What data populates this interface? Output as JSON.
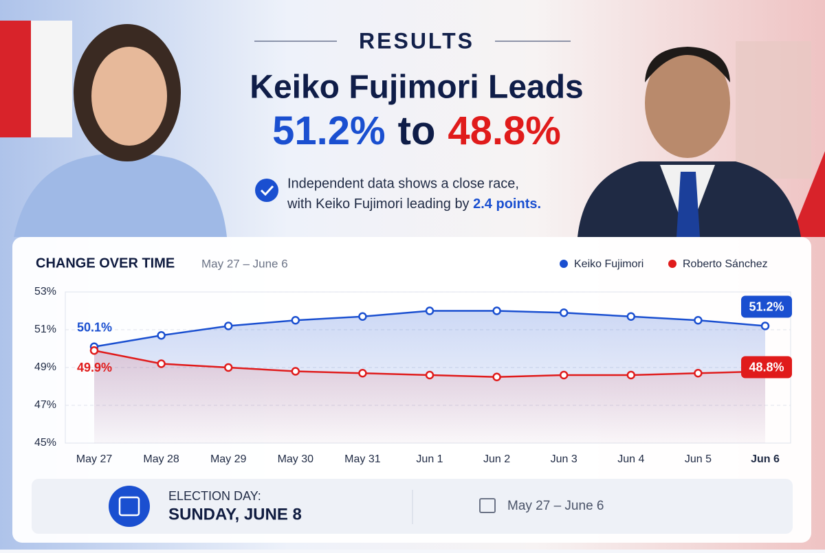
{
  "header": {
    "kicker": "RESULTS",
    "headline": "Keiko Fujimori Leads",
    "share_a": "51.2%",
    "joiner": "to",
    "share_b": "48.8%",
    "note_line1": "Independent data shows a close race,",
    "note_line2": "with Keiko Fujimori leading by ",
    "note_emphasis": "2.4 points."
  },
  "chart_data": {
    "type": "line",
    "title": "CHANGE OVER TIME",
    "subtitle": "May 27 – June 6",
    "categories": [
      "May 27",
      "May 28",
      "May 29",
      "May 30",
      "May 31",
      "Jun 1",
      "Jun 2",
      "Jun 3",
      "Jun 4",
      "Jun 5",
      "Jun 6"
    ],
    "series": [
      {
        "name": "Keiko Fujimori",
        "color": "#1a4fd0",
        "values": [
          50.1,
          50.7,
          51.2,
          51.5,
          51.7,
          52.0,
          52.0,
          51.9,
          51.7,
          51.5,
          51.2
        ],
        "value_labels": [
          "50.1%",
          null,
          null,
          null,
          null,
          null,
          null,
          null,
          null,
          null,
          "51.2%"
        ]
      },
      {
        "name": "Roberto Sánchez",
        "color": "#e01b1b",
        "values": [
          49.9,
          49.2,
          49.0,
          48.8,
          48.7,
          48.6,
          48.5,
          48.6,
          48.6,
          48.7,
          48.8
        ],
        "value_labels": [
          "49.9%",
          null,
          null,
          null,
          null,
          null,
          null,
          null,
          null,
          null,
          "48.8%"
        ]
      }
    ],
    "ylim": [
      45,
      53
    ],
    "yticks": [
      {
        "value": 45,
        "label": "45%"
      },
      {
        "value": 47,
        "label": "47%"
      },
      {
        "value": 49,
        "label": "49%"
      },
      {
        "value": 51,
        "label": "51%"
      },
      {
        "value": 53,
        "label": "53%"
      }
    ],
    "grid": true,
    "legend": "top-right"
  },
  "footer": {
    "label": "ELECTION DAY:",
    "date": "SUNDAY, JUNE 8",
    "range": "May 27 – June 6"
  }
}
